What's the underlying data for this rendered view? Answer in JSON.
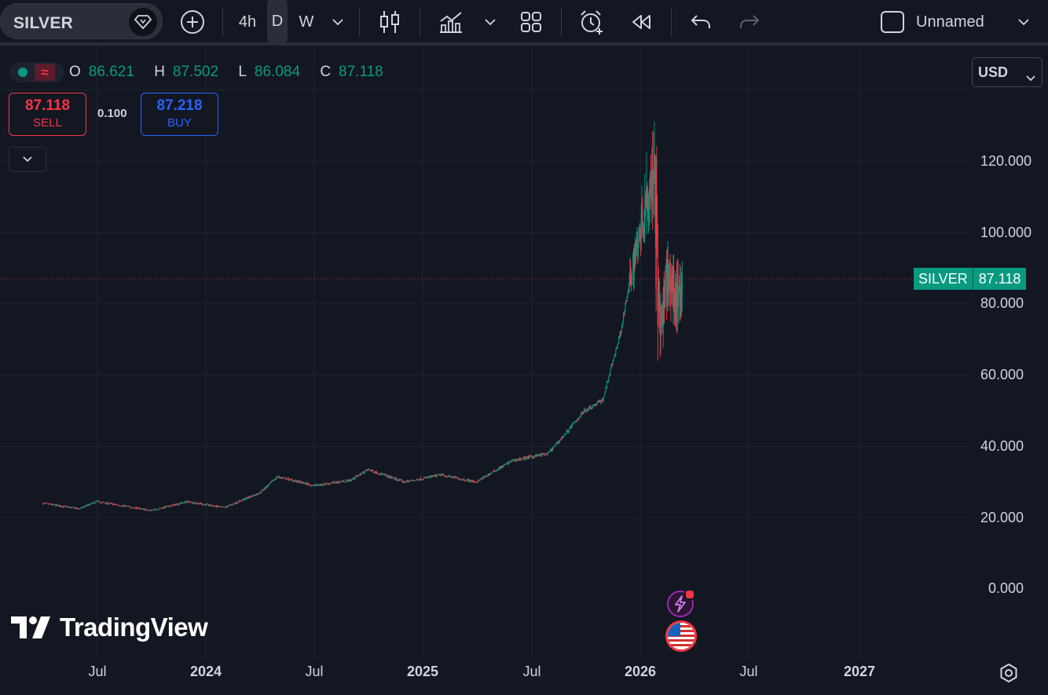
{
  "toolbar": {
    "symbol": "SILVER",
    "timeframes": [
      "4h",
      "D",
      "W"
    ],
    "active_timeframe": "D",
    "layout_name": "Unnamed"
  },
  "legend": {
    "o_label": "O",
    "o": "86.621",
    "h_label": "H",
    "h": "87.502",
    "l_label": "L",
    "l": "86.084",
    "c_label": "C",
    "c": "87.118",
    "toggle_icon": "≈"
  },
  "trade": {
    "sell_price": "87.118",
    "sell_label": "SELL",
    "spread": "0.100",
    "buy_price": "87.218",
    "buy_label": "BUY"
  },
  "currency": "USD",
  "price_scale": {
    "ticks": [
      "120.000",
      "100.000",
      "80.000",
      "60.000",
      "40.000",
      "20.000",
      "0.000"
    ]
  },
  "time_scale": {
    "ticks": [
      {
        "label": "Jul",
        "year": false
      },
      {
        "label": "2024",
        "year": true
      },
      {
        "label": "Jul",
        "year": false
      },
      {
        "label": "2025",
        "year": true
      },
      {
        "label": "Jul",
        "year": false
      },
      {
        "label": "2026",
        "year": true
      },
      {
        "label": "Jul",
        "year": false
      },
      {
        "label": "2027",
        "year": true
      }
    ]
  },
  "last_price": {
    "symbol": "SILVER",
    "value": "87.118"
  },
  "brand": "TradingView",
  "colors": {
    "up": "#089981",
    "down": "#f23645",
    "background": "#131722",
    "grid": "#1f2430",
    "accent": "#2962ff"
  },
  "icons": [
    "compare-plus-icon",
    "candles-icon",
    "indicators-icon",
    "templates-icon",
    "alert-icon",
    "replay-icon",
    "undo-icon",
    "redo-icon",
    "layout-icon",
    "settings-icon"
  ],
  "chart_data": {
    "type": "candlestick",
    "y_range": [
      0,
      140
    ],
    "x_range": [
      "2023-04",
      "2027-05"
    ],
    "grid": true,
    "last_close": 87.118,
    "approx_daily_close_path": [
      {
        "date": "2023-04",
        "close": 24.0
      },
      {
        "date": "2023-06",
        "close": 22.5
      },
      {
        "date": "2023-07",
        "close": 24.5
      },
      {
        "date": "2023-10",
        "close": 22.0
      },
      {
        "date": "2023-12",
        "close": 24.5
      },
      {
        "date": "2024-02",
        "close": 22.8
      },
      {
        "date": "2024-04",
        "close": 27.0
      },
      {
        "date": "2024-05",
        "close": 31.5
      },
      {
        "date": "2024-07",
        "close": 29.0
      },
      {
        "date": "2024-09",
        "close": 30.5
      },
      {
        "date": "2024-10",
        "close": 33.5
      },
      {
        "date": "2024-12",
        "close": 30.0
      },
      {
        "date": "2025-02",
        "close": 32.0
      },
      {
        "date": "2025-04",
        "close": 30.0
      },
      {
        "date": "2025-06",
        "close": 36.0
      },
      {
        "date": "2025-08",
        "close": 38.0
      },
      {
        "date": "2025-09",
        "close": 44.0
      },
      {
        "date": "2025-10",
        "close": 50.0
      },
      {
        "date": "2025-11",
        "close": 53.0
      },
      {
        "date": "2025-12",
        "close": 72.0
      },
      {
        "date": "2026-01",
        "close": 100.0
      },
      {
        "date": "2026-01-29",
        "close": 121.0
      },
      {
        "date": "2026-02-05",
        "close": 72.0
      },
      {
        "date": "2026-02-20",
        "close": 88.0
      },
      {
        "date": "2026-03-05",
        "close": 80.0
      },
      {
        "date": "2026-03-15",
        "close": 87.118
      }
    ]
  }
}
